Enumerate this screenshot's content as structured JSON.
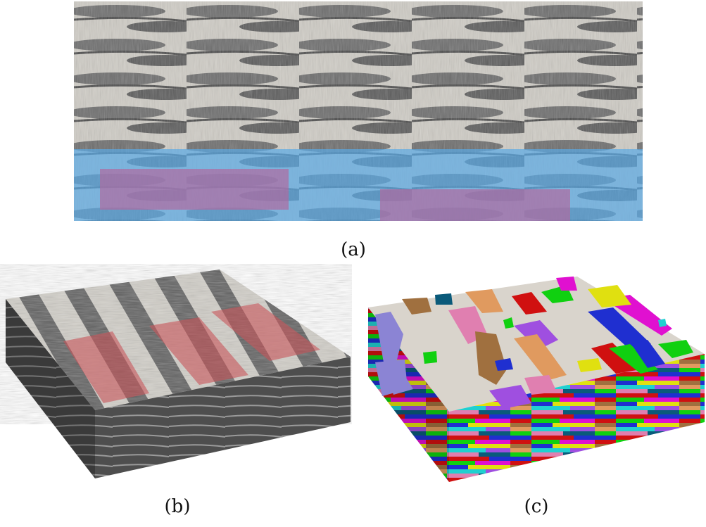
{
  "captions": {
    "a": "(a)",
    "b": "(b)",
    "c": "(c)"
  },
  "colors": {
    "background": "#ffffff",
    "tissue_light": "#d6d3cc",
    "tissue_dark": "#5f5f5f",
    "blue_overlay": "#5aa9e6",
    "red_overlay": "#c8555a",
    "purple_overlay": "#b16aa0",
    "segment_base": "#d9d4cc"
  },
  "segment_palette": [
    "#8b84d4",
    "#a0703f",
    "#e09a5f",
    "#e07fb0",
    "#1f2fd0",
    "#10d010",
    "#d01010",
    "#9f4fe0",
    "#e0e010",
    "#e010d0",
    "#0a5a7a",
    "#20d0d0"
  ]
}
